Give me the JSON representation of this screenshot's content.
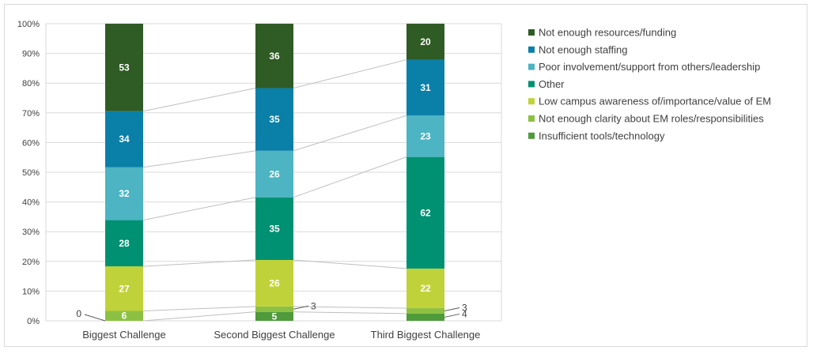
{
  "chart_data": {
    "type": "bar",
    "stacked": "percent",
    "categories": [
      "Biggest Challenge",
      "Second Biggest Challenge",
      "Third Biggest Challenge"
    ],
    "series": [
      {
        "name": "Insufficient tools/technology",
        "values": [
          0,
          5,
          4
        ],
        "color": "#4f9a3a"
      },
      {
        "name": "Not enough clarity about EM roles/responsibilities",
        "values": [
          6,
          3,
          3
        ],
        "color": "#8cc043"
      },
      {
        "name": "Low campus awareness of/importance/value of EM",
        "values": [
          27,
          26,
          22
        ],
        "color": "#c0d23a"
      },
      {
        "name": "Other",
        "values": [
          28,
          35,
          62
        ],
        "color": "#009172"
      },
      {
        "name": "Poor involvement/support from others/leadership",
        "values": [
          32,
          26,
          23
        ],
        "color": "#4cb4c2"
      },
      {
        "name": "Not enough staffing",
        "values": [
          34,
          35,
          31
        ],
        "color": "#0a7fa8"
      },
      {
        "name": "Not enough resources/funding",
        "values": [
          53,
          36,
          20
        ],
        "color": "#2f5b24"
      }
    ],
    "y_ticks": [
      "0%",
      "10%",
      "20%",
      "30%",
      "40%",
      "50%",
      "60%",
      "70%",
      "80%",
      "90%",
      "100%"
    ],
    "ylim": [
      0,
      100
    ],
    "grid": true,
    "series_lines": true,
    "legend_position": "right",
    "legend_order": [
      "Not enough resources/funding",
      "Not enough staffing",
      "Poor involvement/support from others/leadership",
      "Other",
      "Low campus awareness of/importance/value of EM",
      "Not enough clarity about EM roles/responsibilities",
      "Insufficient tools/technology"
    ]
  }
}
